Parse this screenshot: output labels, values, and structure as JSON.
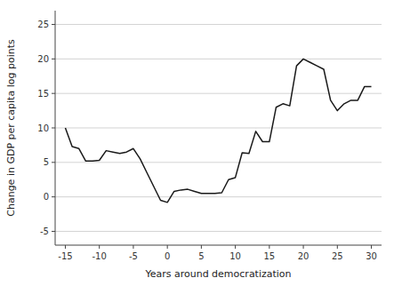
{
  "chart_data": {
    "type": "line",
    "x": [
      -15,
      -14,
      -13,
      -12,
      -11,
      -10,
      -9,
      -8,
      -7,
      -6,
      -5,
      -4,
      -3,
      -2,
      -1,
      0,
      1,
      2,
      3,
      4,
      5,
      6,
      7,
      8,
      9,
      10,
      11,
      12,
      13,
      14,
      15,
      16,
      17,
      18,
      19,
      20,
      21,
      22,
      23,
      24,
      25,
      26,
      27,
      28,
      29,
      30
    ],
    "values": [
      10.0,
      7.3,
      7.0,
      5.2,
      5.2,
      5.3,
      6.7,
      6.5,
      6.3,
      6.5,
      7.0,
      5.5,
      3.5,
      1.5,
      -0.5,
      -0.8,
      0.8,
      1.0,
      1.1,
      0.8,
      0.5,
      0.5,
      0.5,
      0.6,
      2.5,
      2.8,
      6.4,
      6.3,
      9.5,
      8.0,
      8.0,
      13.0,
      13.5,
      13.2,
      19.0,
      20.0,
      19.5,
      19.0,
      18.5,
      14.0,
      12.5,
      13.5,
      14.0,
      14.0,
      16.0,
      16.0
    ],
    "color": "#1a1a1a",
    "xlabel": "Years around democratization",
    "ylabel": "Change in GDP per capita log points",
    "xlim": [
      -16.5,
      31.5
    ],
    "ylim": [
      -7,
      27
    ],
    "xticks": [
      -15,
      -10,
      -5,
      0,
      5,
      10,
      15,
      20,
      25,
      30
    ],
    "yticks": [
      -5,
      0,
      5,
      10,
      15,
      20,
      25
    ],
    "grid": true
  }
}
